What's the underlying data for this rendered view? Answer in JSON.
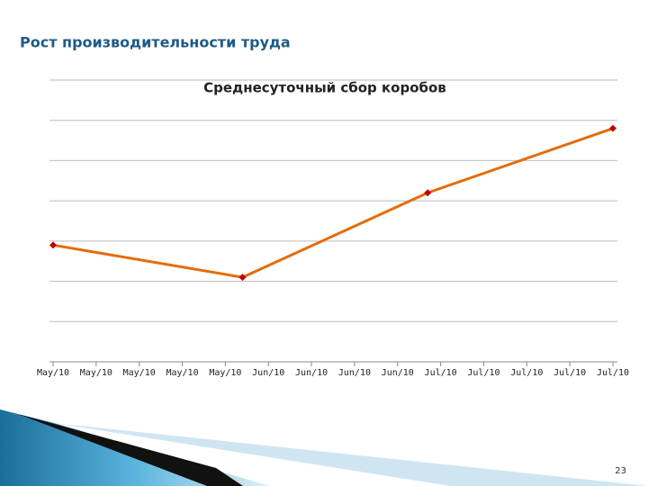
{
  "slide_title": "Рост производительности труда",
  "page_number": "23",
  "chart_data": {
    "type": "line",
    "title": "Среднесуточный сбор коробов",
    "x": [
      0,
      4.4,
      8.7,
      13
    ],
    "series": [
      {
        "color": "#e46c0a",
        "marker_color": "#c00000",
        "values": [
          2.9,
          2.1,
          4.2,
          5.8
        ]
      }
    ],
    "xlim": [
      0,
      13
    ],
    "xticks": [
      {
        "value": 0,
        "label": "May/10"
      },
      {
        "value": 1,
        "label": "May/10"
      },
      {
        "value": 2,
        "label": "May/10"
      },
      {
        "value": 3,
        "label": "May/10"
      },
      {
        "value": 4,
        "label": "May/10"
      },
      {
        "value": 5,
        "label": "Jun/10"
      },
      {
        "value": 6,
        "label": "Jun/10"
      },
      {
        "value": 7,
        "label": "Jun/10"
      },
      {
        "value": 8,
        "label": "Jun/10"
      },
      {
        "value": 9,
        "label": "Jul/10"
      },
      {
        "value": 10,
        "label": "Jul/10"
      },
      {
        "value": 11,
        "label": "Jul/10"
      },
      {
        "value": 12,
        "label": "Jul/10"
      },
      {
        "value": 13,
        "label": "Jul/10"
      }
    ],
    "ylim": [
      0,
      7
    ],
    "yticks": [
      0,
      1,
      2,
      3,
      4,
      5,
      6,
      7
    ],
    "grid": true
  }
}
